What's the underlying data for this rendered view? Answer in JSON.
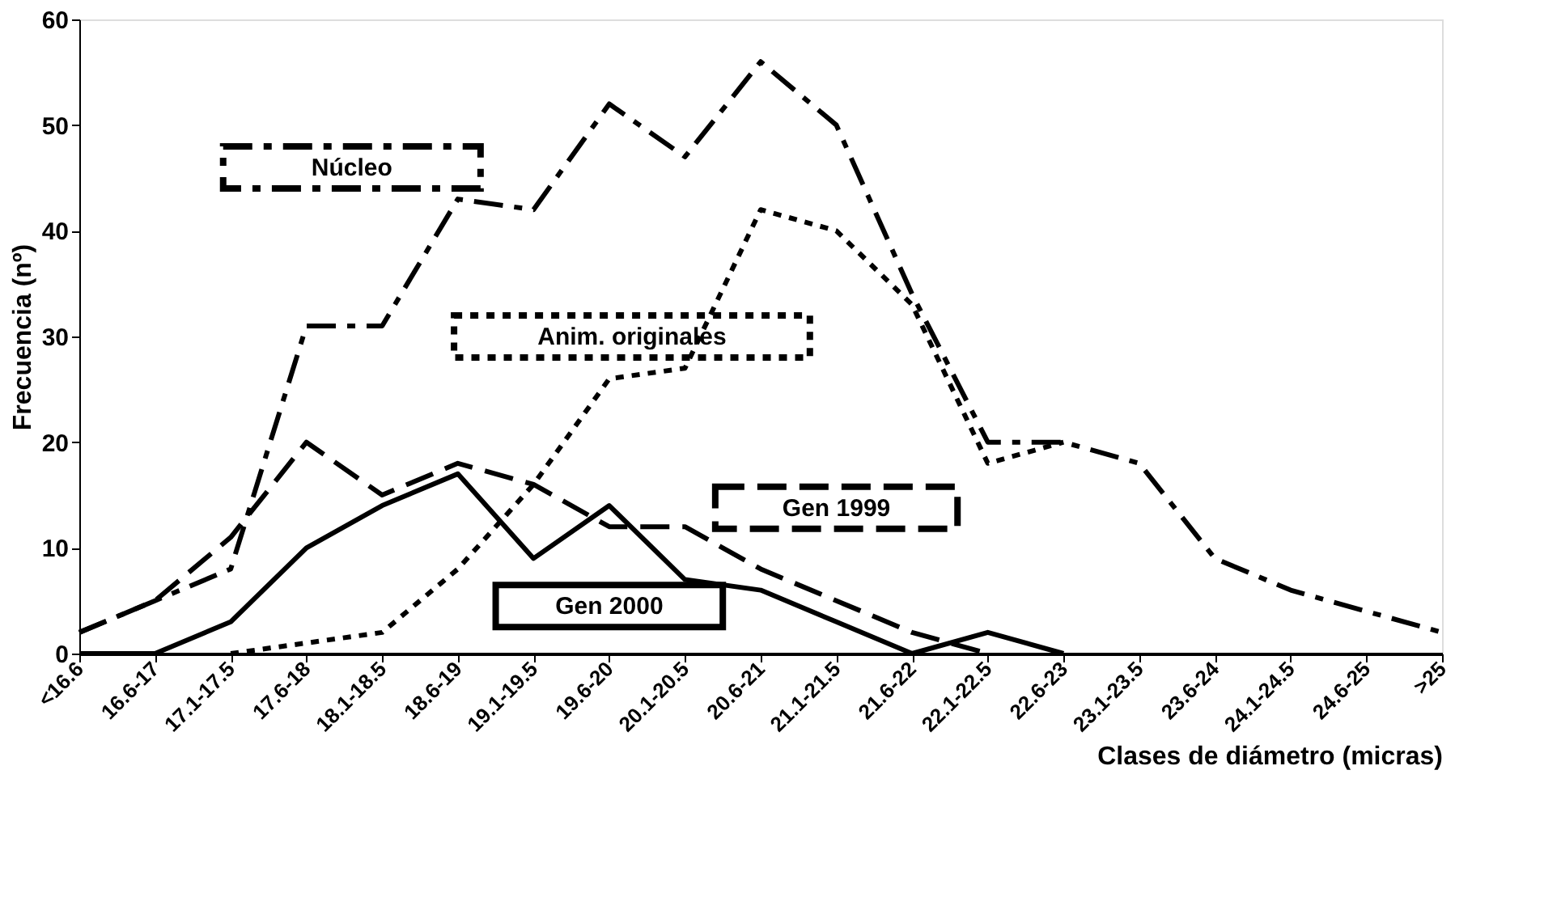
{
  "chart_data": {
    "type": "line",
    "xlabel": "Clases de diámetro (micras)",
    "ylabel": "Frecuencia (nº)",
    "categories": [
      "<16.6",
      "16.6-17",
      "17.1-17.5",
      "17.6-18",
      "18.1-18.5",
      "18.6-19",
      "19.1-19.5",
      "19.6-20",
      "20.1-20.5",
      "20.6-21",
      "21.1-21.5",
      "21.6-22",
      "22.1-22.5",
      "22.6-23",
      "23.1-23.5",
      "23.6-24",
      "24.1-24.5",
      "24.6-25",
      ">25"
    ],
    "series": [
      {
        "name": "Núcleo",
        "color": "#000000",
        "line_style": "dashdot",
        "values": [
          2,
          5,
          8,
          31,
          31,
          43,
          42,
          52,
          47,
          56,
          50,
          34,
          20,
          20,
          18,
          9,
          6,
          4,
          2
        ]
      },
      {
        "name": "Gen 1999",
        "color": "#000000",
        "line_style": "dashed",
        "values": [
          2,
          5,
          11,
          20,
          15,
          18,
          16,
          12,
          12,
          8,
          5,
          2,
          0,
          null,
          null,
          null,
          null,
          null,
          null
        ]
      },
      {
        "name": "Anim. originales",
        "color": "#000000",
        "line_style": "dotted",
        "values": [
          null,
          null,
          0,
          1,
          2,
          8,
          16,
          26,
          27,
          42,
          40,
          33,
          18,
          20,
          null,
          null,
          null,
          null,
          null
        ]
      },
      {
        "name": "Gen 2000",
        "color": "#000000",
        "line_style": "solid",
        "values": [
          0,
          0,
          3,
          10,
          14,
          17,
          9,
          14,
          7,
          6,
          3,
          0,
          2,
          0,
          null,
          null,
          null,
          null,
          null
        ]
      }
    ],
    "ylim": [
      0,
      60
    ],
    "yticks": [
      0,
      10,
      20,
      30,
      40,
      50,
      60
    ],
    "grid": false,
    "marker": "none"
  }
}
